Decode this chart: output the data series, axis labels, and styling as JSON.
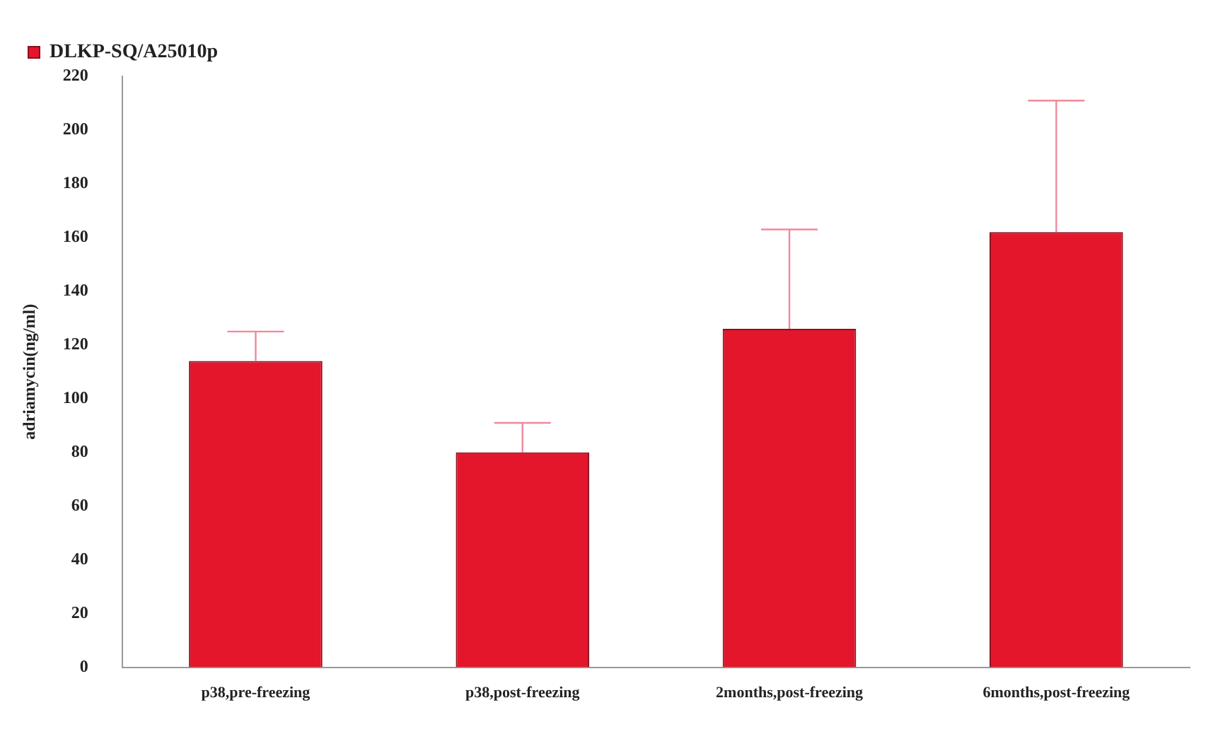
{
  "chart_data": {
    "type": "bar",
    "ylabel": "adriamycin(ng/ml)",
    "categories": [
      "p38,pre-freezing",
      "p38,post-freezing",
      "2months,post-freezing",
      "6months,post-freezing"
    ],
    "series": [
      {
        "name": "DLKP-SQ/A25010p",
        "color": "#e3162b",
        "values": [
          114,
          80,
          126,
          162
        ],
        "errors": [
          [
            114,
            125
          ],
          [
            80,
            91
          ],
          [
            126,
            163
          ],
          [
            162,
            211
          ]
        ]
      }
    ],
    "ylim": [
      0,
      220
    ],
    "yticks": [
      0,
      20,
      40,
      60,
      80,
      100,
      120,
      140,
      160,
      180,
      200,
      220
    ],
    "grid": false,
    "legend": "top left"
  }
}
